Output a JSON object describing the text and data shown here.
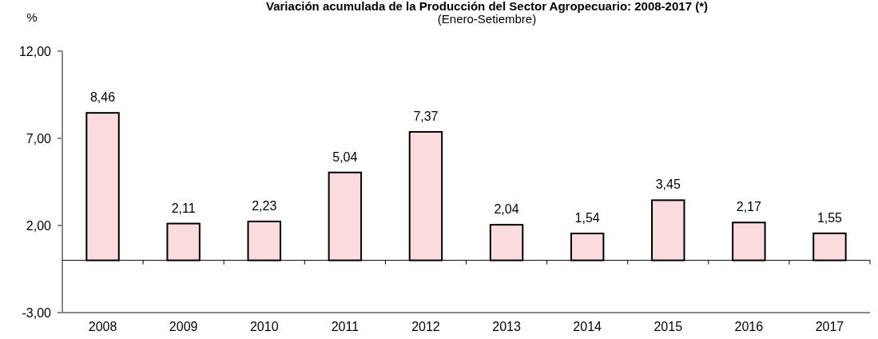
{
  "chart_data": {
    "type": "bar",
    "title": "Variación acumulada de la Producción del Sector Agropecuario: 2008-2017 (*)",
    "subtitle": "(Enero-Setiembre)",
    "ylabel": "%",
    "categories": [
      "2008",
      "2009",
      "2010",
      "2011",
      "2012",
      "2013",
      "2014",
      "2015",
      "2016",
      "2017"
    ],
    "values": [
      8.46,
      2.11,
      2.23,
      5.04,
      7.37,
      2.04,
      1.54,
      3.45,
      2.17,
      1.55
    ],
    "color": "#fadcde",
    "ylim": [
      -3,
      12
    ],
    "yticks": [
      {
        "value": -3,
        "label": "-3,00"
      },
      {
        "value": 2,
        "label": "2,00"
      },
      {
        "value": 7,
        "label": "7,00"
      },
      {
        "value": 12,
        "label": "12,00"
      }
    ],
    "value_labels": [
      "8,46",
      "2,11",
      "2,23",
      "5,04",
      "7,37",
      "2,04",
      "1,54",
      "3,45",
      "2,17",
      "1,55"
    ],
    "grid": false
  }
}
